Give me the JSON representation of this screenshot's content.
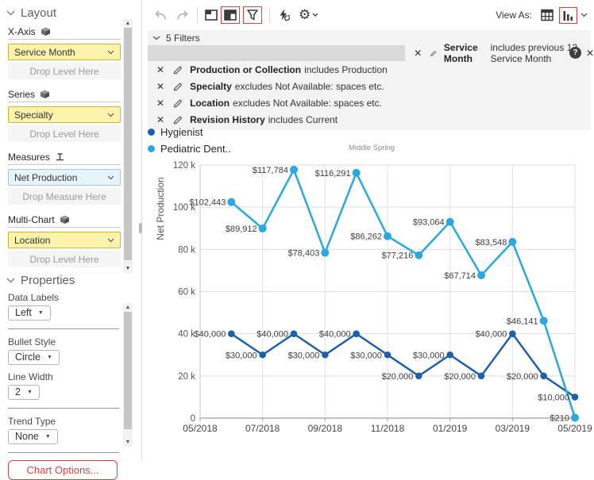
{
  "toolbar": {
    "view_as_label": "View As:",
    "icon_names": [
      "undo-icon",
      "redo-icon",
      "window-icon",
      "layout-panel-icon",
      "filter-funnel-icon",
      "auto-refresh-bolt-icon",
      "settings-gear-icon",
      "chevron-down-icon",
      "table-view-icon",
      "chart-view-icon"
    ],
    "highlight_color": "#d9453c"
  },
  "layout_panel": {
    "title": "Layout",
    "sections": [
      {
        "label": "X-Axis",
        "icon": "cube-icon",
        "value": "Service Month",
        "drop_text": "Drop Level Here",
        "style": "yellow"
      },
      {
        "label": "Series",
        "icon": "cube-icon",
        "value": "Specialty",
        "drop_text": "Drop Level Here",
        "style": "yellow"
      },
      {
        "label": "Measures",
        "icon": "measure-icon",
        "value": "Net Production",
        "drop_text": "Drop Measure Here",
        "style": "blue"
      },
      {
        "label": "Multi-Chart",
        "icon": "cube-icon",
        "value": "Location",
        "drop_text": "Drop Level Here",
        "style": "yellow"
      }
    ]
  },
  "properties_panel": {
    "title": "Properties",
    "fields": [
      {
        "label": "Data Labels",
        "value": "Left"
      },
      {
        "label": "Bullet Style",
        "value": "Circle"
      },
      {
        "label": "Line Width",
        "value": "2"
      },
      {
        "label": "Trend Type",
        "value": "None"
      }
    ],
    "chart_options_label": "Chart Options..."
  },
  "filters": {
    "header": "5 Filters",
    "items": [
      {
        "field": "Service Month",
        "condition": "includes previous 12 Service Month",
        "selected": true
      },
      {
        "field": "Production or Collection",
        "condition": "includes Production",
        "selected": false
      },
      {
        "field": "Specialty",
        "condition": "excludes Not Available: spaces etc.",
        "selected": false
      },
      {
        "field": "Location",
        "condition": "excludes Not Available: spaces etc.",
        "selected": false
      },
      {
        "field": "Revision History",
        "condition": "includes Current",
        "selected": false
      }
    ]
  },
  "chart_data": {
    "type": "line",
    "title": "Middle Spring",
    "ylabel": "Net Production",
    "ylim": [
      0,
      120000
    ],
    "y_tick_labels": [
      "0",
      "20 k",
      "40 k",
      "60 k",
      "80 k",
      "100 k",
      "120 k"
    ],
    "x": [
      "06/2018",
      "07/2018",
      "08/2018",
      "09/2018",
      "10/2018",
      "11/2018",
      "12/2018",
      "01/2019",
      "02/2019",
      "03/2019",
      "04/2019",
      "05/2019"
    ],
    "x_tick_labels": [
      "05/2018",
      "07/2018",
      "09/2018",
      "11/2018",
      "01/2019",
      "03/2019",
      "05/2019"
    ],
    "grid": true,
    "legend_position": "top-left",
    "data_labels": "left",
    "series": [
      {
        "name": "Hygienist",
        "color": "#1f61a8",
        "values": [
          40000,
          30000,
          40000,
          30000,
          40000,
          30000,
          20000,
          30000,
          20000,
          40000,
          20000,
          10000
        ]
      },
      {
        "name": "Pediatric Dent..",
        "color": "#29a9e0",
        "values": [
          102443,
          89912,
          117784,
          78403,
          116291,
          86262,
          77216,
          93064,
          67714,
          83548,
          46141,
          210
        ]
      }
    ]
  }
}
